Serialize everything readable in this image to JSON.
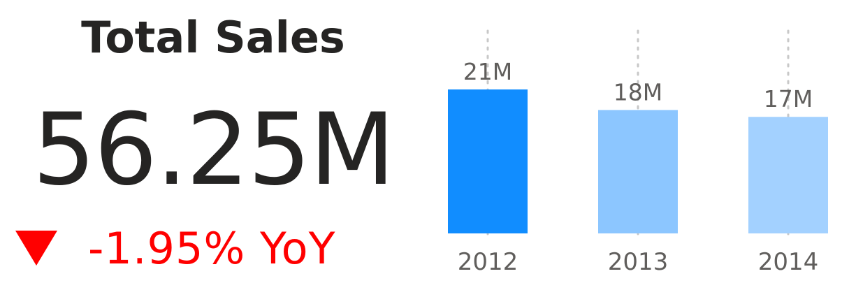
{
  "kpi": {
    "title": "Total Sales",
    "value": "56.25M",
    "change_text": "-1.95% YoY",
    "trend_icon": "down-triangle-icon",
    "change_color": "#ff0000"
  },
  "chart_data": {
    "type": "bar",
    "categories": [
      "2012",
      "2013",
      "2014"
    ],
    "values": [
      21,
      18,
      17
    ],
    "value_labels": [
      "21M",
      "18M",
      "17M"
    ],
    "unit": "M",
    "colors": [
      "#118dff",
      "#8cc6ff",
      "#a3d1ff"
    ],
    "ylim": [
      0,
      21
    ],
    "grid": false
  }
}
